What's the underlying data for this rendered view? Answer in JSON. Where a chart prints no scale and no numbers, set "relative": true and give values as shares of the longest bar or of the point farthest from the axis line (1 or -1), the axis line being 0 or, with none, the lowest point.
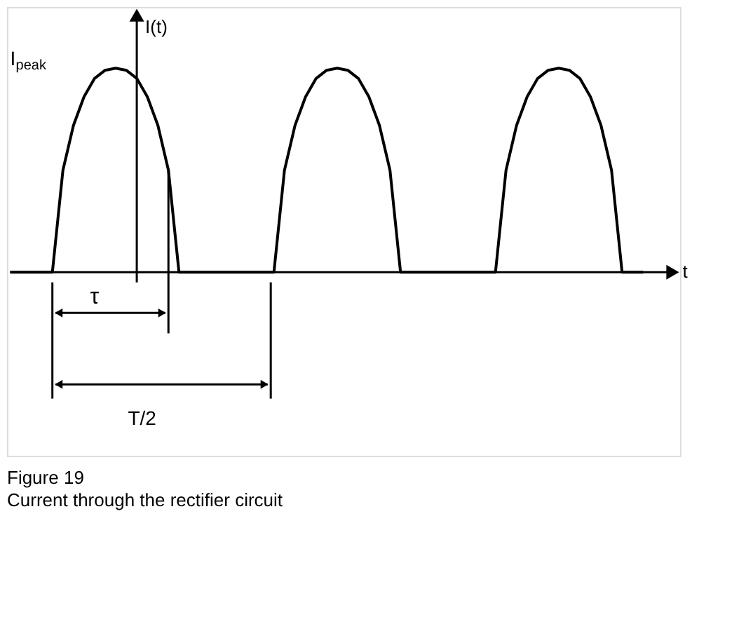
{
  "chart_data": {
    "type": "line",
    "relative": true,
    "title": "Figure 19",
    "subtitle": "Current through the rectifier circuit",
    "xlabel": "t",
    "ylabel": "I(t)",
    "categories": [
      null,
      null,
      null,
      null,
      null,
      null,
      null,
      null,
      null,
      null,
      null,
      null,
      null,
      null,
      null,
      null,
      null,
      null,
      null,
      null,
      null,
      null,
      null,
      null,
      null,
      null,
      null,
      null,
      null,
      null,
      null,
      null,
      null,
      null,
      null,
      null,
      null,
      null,
      null,
      null,
      null,
      null,
      null,
      null,
      null,
      null,
      null,
      null,
      null,
      null,
      null,
      null,
      null,
      null,
      null,
      null,
      null,
      null,
      null,
      null,
      null
    ],
    "series": [
      {
        "color": "#000000",
        "values": [
          0,
          0,
          0,
          0,
          0,
          0.5,
          0.72,
          0.86,
          0.95,
          0.99,
          1,
          0.99,
          0.95,
          0.86,
          0.72,
          0.5,
          0,
          0,
          0,
          0,
          0,
          0,
          0,
          0,
          0,
          0,
          0.5,
          0.72,
          0.86,
          0.95,
          0.99,
          1,
          0.99,
          0.95,
          0.86,
          0.72,
          0.5,
          0,
          0,
          0,
          0,
          0,
          0,
          0,
          0,
          0,
          0,
          0.5,
          0.72,
          0.86,
          0.95,
          0.99,
          1,
          0.99,
          0.95,
          0.86,
          0.72,
          0.5,
          0,
          0,
          0
        ]
      }
    ],
    "annotations": [
      "I$_{peak}$",
      "τ",
      "T/2"
    ],
    "marker": "none",
    "line_style": "solid"
  }
}
